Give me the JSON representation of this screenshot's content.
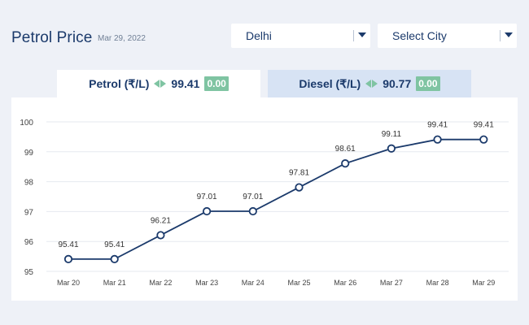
{
  "header": {
    "title": "Petrol Price",
    "date": "Mar 29, 2022",
    "city_select": {
      "value": "Delhi"
    },
    "city_select_2": {
      "value": "Select City"
    }
  },
  "tabs": [
    {
      "label": "Petrol (₹/L)",
      "price": "99.41",
      "change": "0.00",
      "active": true
    },
    {
      "label": "Diesel (₹/L)",
      "price": "90.77",
      "change": "0.00",
      "active": false
    }
  ],
  "colors": {
    "line": "#1b3a6b",
    "badge": "#7fc4a2",
    "grid": "#e6e9ef",
    "active_tab": "#ffffff",
    "inactive_tab": "#d7e3f4"
  },
  "chart_data": {
    "type": "line",
    "categories": [
      "Mar 20",
      "Mar 21",
      "Mar 22",
      "Mar 23",
      "Mar 24",
      "Mar 25",
      "Mar 26",
      "Mar 27",
      "Mar 28",
      "Mar 29"
    ],
    "series": [
      {
        "values": [
          95.41,
          95.41,
          96.21,
          97.01,
          97.01,
          97.81,
          98.61,
          99.11,
          99.41,
          99.41
        ]
      }
    ],
    "data_labels": [
      "95.41",
      "95.41",
      "96.21",
      "97.01",
      "97.01",
      "97.81",
      "98.61",
      "99.11",
      "99.41",
      "99.41"
    ],
    "y_ticks": [
      "95",
      "96",
      "97",
      "98",
      "99",
      "100"
    ],
    "ylim": [
      95,
      100
    ],
    "grid": true,
    "title": "",
    "xlabel": "",
    "ylabel": ""
  }
}
